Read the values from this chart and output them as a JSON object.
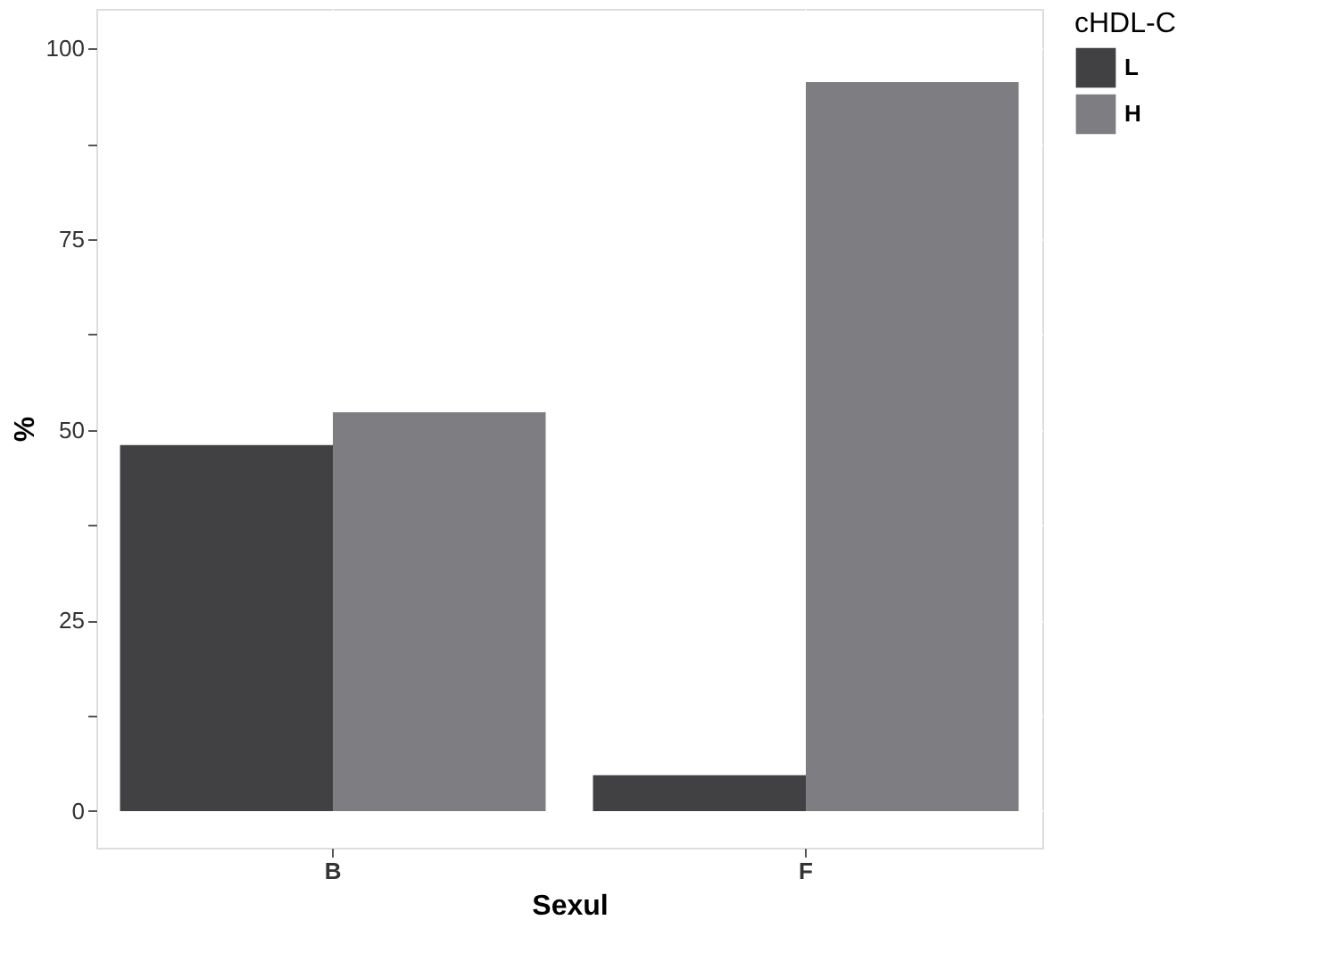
{
  "chart_data": {
    "type": "bar",
    "xlabel": "Sexul",
    "ylabel": "%",
    "legend_title": "cHDL-C",
    "categories": [
      "B",
      "F"
    ],
    "series": [
      {
        "name": "L",
        "color": "#414143",
        "values": [
          48,
          4.7
        ]
      },
      {
        "name": "H",
        "color": "#7e7e82",
        "values": [
          52.3,
          95.6
        ]
      }
    ],
    "ylim": [
      -4.8,
      105.2
    ],
    "yticks": [
      0,
      {
        "value": 12.5,
        "label": null
      },
      25,
      {
        "value": 37.5,
        "label": null
      },
      50,
      {
        "value": 62.5,
        "label": null
      },
      75,
      {
        "value": 87.5,
        "label": null
      },
      100
    ],
    "grid": true,
    "legend": "right"
  }
}
